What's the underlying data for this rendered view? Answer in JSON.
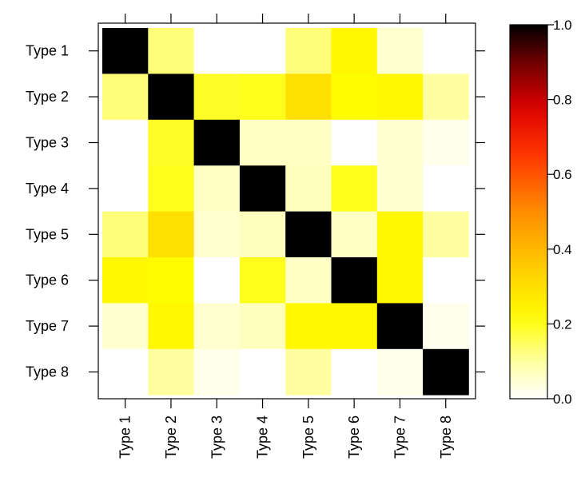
{
  "chart_data": {
    "type": "heatmap",
    "title": "",
    "xlabel": "",
    "ylabel": "",
    "x_categories": [
      "Type 1",
      "Type 2",
      "Type 3",
      "Type 4",
      "Type 5",
      "Type 6",
      "Type 7",
      "Type 8"
    ],
    "y_categories": [
      "Type 1",
      "Type 2",
      "Type 3",
      "Type 4",
      "Type 5",
      "Type 6",
      "Type 7",
      "Type 8"
    ],
    "values": [
      [
        1.0,
        0.13,
        0.0,
        0.0,
        0.13,
        0.23,
        0.05,
        0.0
      ],
      [
        0.13,
        1.0,
        0.19,
        0.2,
        0.3,
        0.22,
        0.23,
        0.1
      ],
      [
        0.0,
        0.19,
        1.0,
        0.06,
        0.06,
        0.0,
        0.05,
        0.02
      ],
      [
        0.0,
        0.2,
        0.06,
        1.0,
        0.07,
        0.2,
        0.05,
        0.0
      ],
      [
        0.13,
        0.3,
        0.05,
        0.07,
        1.0,
        0.06,
        0.23,
        0.1
      ],
      [
        0.23,
        0.22,
        0.0,
        0.2,
        0.06,
        1.0,
        0.23,
        0.0
      ],
      [
        0.05,
        0.23,
        0.05,
        0.07,
        0.23,
        0.23,
        1.0,
        0.02
      ],
      [
        0.0,
        0.1,
        0.02,
        0.0,
        0.1,
        0.0,
        0.02,
        1.0
      ]
    ],
    "colorbar": {
      "range": [
        0.0,
        1.0
      ],
      "ticks": [
        0.0,
        0.2,
        0.4,
        0.6,
        0.8,
        1.0
      ],
      "tick_labels": [
        "0.0",
        "0.2",
        "0.4",
        "0.6",
        "0.8",
        "1.0"
      ],
      "colormap": "heat (white-yellow-orange-red-black)"
    }
  }
}
